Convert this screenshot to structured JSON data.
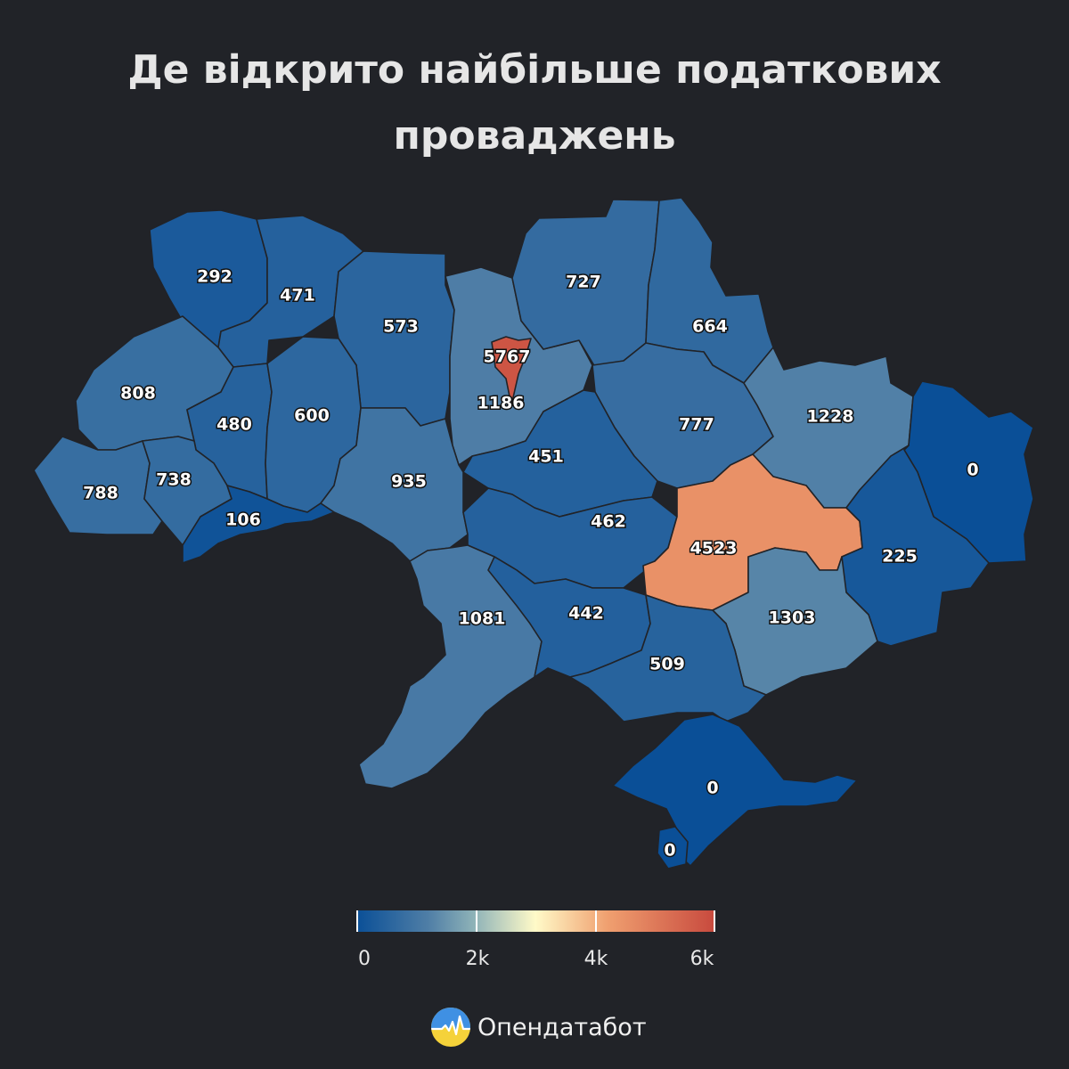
{
  "title": "Де відкрито найбільше податкових проваджень",
  "brand": {
    "name": "Опендатабот",
    "logo_icon": "opendatabot-logo-icon"
  },
  "legend": {
    "ticks": [
      "0",
      "2k",
      "4k",
      "6k"
    ],
    "min": 0,
    "max": 6000,
    "colors": [
      "#0a4f97",
      "#4f7ea6",
      "#8fb3b8",
      "#fffac8",
      "#f0a070",
      "#c84a3e"
    ]
  },
  "chart_data": {
    "type": "choropleth",
    "title": "Де відкрито найбільше податкових проваджень",
    "scale": {
      "min": 0,
      "max": 6000,
      "ticks": [
        0,
        2000,
        4000,
        6000
      ]
    },
    "regions": [
      {
        "id": "volyn",
        "value": 292
      },
      {
        "id": "rivne",
        "value": 471
      },
      {
        "id": "zhytomyr",
        "value": 573
      },
      {
        "id": "kyiv-city",
        "value": 5767
      },
      {
        "id": "kyiv-oblast",
        "value": 1186
      },
      {
        "id": "chernihiv",
        "value": 727
      },
      {
        "id": "sumy",
        "value": 664
      },
      {
        "id": "lviv",
        "value": 808
      },
      {
        "id": "ternopil",
        "value": 480
      },
      {
        "id": "khmelnytskyi",
        "value": 600
      },
      {
        "id": "poltava",
        "value": 777
      },
      {
        "id": "kharkiv",
        "value": 1228
      },
      {
        "id": "luhansk",
        "value": 0
      },
      {
        "id": "cherkasy",
        "value": 451
      },
      {
        "id": "zakarpattia",
        "value": 788
      },
      {
        "id": "ivano-frankivsk",
        "value": 738
      },
      {
        "id": "vinnytsia",
        "value": 935
      },
      {
        "id": "chernivtsi",
        "value": 106
      },
      {
        "id": "kirovohrad",
        "value": 462
      },
      {
        "id": "dnipropetrovsk",
        "value": 4523
      },
      {
        "id": "donetsk",
        "value": 225
      },
      {
        "id": "odesa",
        "value": 1081
      },
      {
        "id": "mykolaiv",
        "value": 442
      },
      {
        "id": "zaporizhzhia",
        "value": 1303
      },
      {
        "id": "kherson",
        "value": 509
      },
      {
        "id": "crimea",
        "value": 0
      },
      {
        "id": "sevastopol",
        "value": 0
      }
    ]
  }
}
